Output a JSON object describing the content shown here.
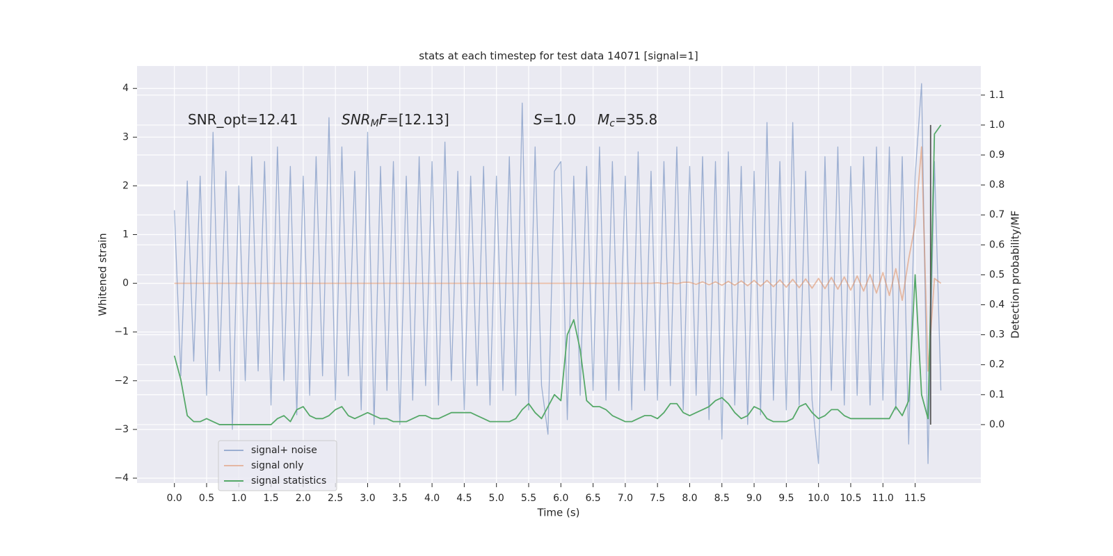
{
  "chart_data": {
    "type": "line",
    "title": "stats at each timestep for test data 14071 [signal=1]",
    "xlabel": "Time (s)",
    "ylabel": "Whitened strain",
    "y2label": "Detection probability/MF",
    "x": [
      0.0,
      0.1,
      0.2,
      0.3,
      0.4,
      0.5,
      0.6,
      0.7,
      0.8,
      0.9,
      1.0,
      1.1,
      1.2,
      1.3,
      1.4,
      1.5,
      1.6,
      1.7,
      1.8,
      1.9,
      2.0,
      2.1,
      2.2,
      2.3,
      2.4,
      2.5,
      2.6,
      2.7,
      2.8,
      2.9,
      3.0,
      3.1,
      3.2,
      3.3,
      3.4,
      3.5,
      3.6,
      3.7,
      3.8,
      3.9,
      4.0,
      4.1,
      4.2,
      4.3,
      4.4,
      4.5,
      4.6,
      4.7,
      4.8,
      4.9,
      5.0,
      5.1,
      5.2,
      5.3,
      5.4,
      5.5,
      5.6,
      5.7,
      5.8,
      5.9,
      6.0,
      6.1,
      6.2,
      6.3,
      6.4,
      6.5,
      6.6,
      6.7,
      6.8,
      6.9,
      7.0,
      7.1,
      7.2,
      7.3,
      7.4,
      7.5,
      7.6,
      7.7,
      7.8,
      7.9,
      8.0,
      8.1,
      8.2,
      8.3,
      8.4,
      8.5,
      8.6,
      8.7,
      8.8,
      8.9,
      9.0,
      9.1,
      9.2,
      9.3,
      9.4,
      9.5,
      9.6,
      9.7,
      9.8,
      9.9,
      10.0,
      10.1,
      10.2,
      10.3,
      10.4,
      10.5,
      10.6,
      10.7,
      10.8,
      10.9,
      11.0,
      11.1,
      11.2,
      11.3,
      11.4,
      11.5,
      11.6,
      11.7,
      11.8,
      11.9
    ],
    "series": [
      {
        "name": "signal+ noise",
        "color": "#4c72b0",
        "opacity": 0.5,
        "axis": "y",
        "values": [
          1.5,
          -1.9,
          2.1,
          -1.6,
          2.2,
          -2.3,
          3.1,
          -1.8,
          2.3,
          -3.0,
          2.0,
          -2.0,
          2.6,
          -1.8,
          2.5,
          -2.5,
          2.8,
          -2.0,
          2.4,
          -2.7,
          2.2,
          -2.3,
          2.6,
          -1.9,
          3.4,
          -2.4,
          2.8,
          -1.9,
          2.3,
          -2.6,
          3.1,
          -2.9,
          2.4,
          -2.2,
          2.5,
          -2.9,
          2.2,
          -2.4,
          2.6,
          -2.1,
          2.5,
          -2.5,
          2.9,
          -2.0,
          2.3,
          -2.6,
          2.2,
          -2.1,
          2.4,
          -2.5,
          2.2,
          -2.2,
          2.6,
          -2.3,
          3.7,
          -2.6,
          2.8,
          -2.1,
          -3.1,
          2.3,
          2.5,
          -2.8,
          2.2,
          -2.3,
          2.4,
          -2.2,
          2.8,
          -2.4,
          2.5,
          -2.2,
          2.2,
          -2.6,
          2.7,
          -2.2,
          2.3,
          -2.4,
          2.5,
          -2.1,
          2.8,
          -2.6,
          2.4,
          -2.3,
          2.6,
          -2.8,
          2.5,
          -3.2,
          2.7,
          -2.5,
          2.4,
          -2.9,
          2.3,
          -2.7,
          3.3,
          -2.4,
          2.5,
          -2.6,
          3.3,
          -2.5,
          2.3,
          -2.4,
          -3.7,
          2.6,
          -2.2,
          2.8,
          -2.5,
          2.4,
          -2.3,
          2.6,
          -2.5,
          2.8,
          -2.4,
          2.8,
          -2.6,
          2.6,
          -3.3,
          2.2,
          4.1,
          -3.7,
          2.5,
          -2.2
        ]
      },
      {
        "name": "signal only",
        "color": "#dd8452",
        "opacity": 0.5,
        "axis": "y",
        "values": [
          0,
          0,
          0,
          0,
          0,
          0,
          0,
          0,
          0,
          0,
          0,
          0,
          0,
          0,
          0,
          0,
          0,
          0,
          0,
          0,
          0,
          0,
          0,
          0,
          0,
          0,
          0,
          0,
          0,
          0,
          0,
          0,
          0,
          0,
          0,
          0,
          0,
          0,
          0,
          0,
          0,
          0,
          0,
          0,
          0,
          0,
          0,
          0,
          0,
          0,
          0,
          0,
          0,
          0,
          0,
          0,
          0,
          0,
          0,
          0,
          0,
          0,
          0,
          0,
          0,
          0,
          0,
          0,
          0,
          0,
          0,
          0,
          0,
          0,
          0,
          0.01,
          -0.01,
          0.01,
          -0.01,
          0.02,
          0.02,
          -0.02,
          0.03,
          -0.03,
          0.03,
          -0.04,
          0.04,
          -0.04,
          0.05,
          -0.05,
          0.06,
          -0.06,
          0.06,
          -0.07,
          0.07,
          -0.08,
          0.08,
          -0.09,
          0.09,
          -0.1,
          0.1,
          -0.11,
          0.12,
          -0.12,
          0.13,
          -0.14,
          0.15,
          -0.16,
          0.18,
          -0.2,
          0.22,
          -0.25,
          0.3,
          -0.35,
          0.5,
          1.2,
          2.8,
          -1.8,
          0.1,
          0.0
        ]
      },
      {
        "name": "signal statistics",
        "color": "#55a868",
        "opacity": 1,
        "axis": "y2",
        "values": [
          0.23,
          0.15,
          0.03,
          0.01,
          0.01,
          0.02,
          0.01,
          0.0,
          0.0,
          0.0,
          0.0,
          0.0,
          0.0,
          0.0,
          0.0,
          0.0,
          0.02,
          0.03,
          0.01,
          0.05,
          0.06,
          0.03,
          0.02,
          0.02,
          0.03,
          0.05,
          0.06,
          0.03,
          0.02,
          0.03,
          0.04,
          0.03,
          0.02,
          0.02,
          0.01,
          0.01,
          0.01,
          0.02,
          0.03,
          0.03,
          0.02,
          0.02,
          0.03,
          0.04,
          0.04,
          0.04,
          0.04,
          0.03,
          0.02,
          0.01,
          0.01,
          0.01,
          0.01,
          0.02,
          0.05,
          0.07,
          0.04,
          0.02,
          0.06,
          0.1,
          0.08,
          0.3,
          0.35,
          0.25,
          0.08,
          0.06,
          0.06,
          0.05,
          0.03,
          0.02,
          0.01,
          0.01,
          0.02,
          0.03,
          0.03,
          0.02,
          0.04,
          0.07,
          0.07,
          0.04,
          0.03,
          0.04,
          0.05,
          0.06,
          0.08,
          0.09,
          0.07,
          0.04,
          0.02,
          0.03,
          0.06,
          0.05,
          0.02,
          0.01,
          0.01,
          0.01,
          0.02,
          0.06,
          0.07,
          0.04,
          0.02,
          0.03,
          0.05,
          0.05,
          0.03,
          0.02,
          0.02,
          0.02,
          0.02,
          0.02,
          0.02,
          0.02,
          0.06,
          0.03,
          0.08,
          0.5,
          0.1,
          0.02,
          0.97,
          1.0
        ]
      }
    ],
    "vlines": [
      {
        "x": 11.74,
        "ymin": 0.0,
        "ymax": 1.0,
        "axis": "y2",
        "color": "#555555"
      }
    ],
    "annotations": [
      {
        "parts": [
          {
            "text": "SNR_opt=12.41",
            "style": "normal"
          }
        ]
      },
      {
        "parts": [
          {
            "text": "SNR",
            "style": "italic"
          },
          {
            "text": "M",
            "style": "italic-sub"
          },
          {
            "text": "F",
            "style": "italic"
          },
          {
            "text": "=[12.13]",
            "style": "normal"
          }
        ]
      },
      {
        "parts": [
          {
            "text": "S",
            "style": "italic"
          },
          {
            "text": "=1.0",
            "style": "normal"
          }
        ]
      },
      {
        "parts": [
          {
            "text": "M",
            "style": "italic"
          },
          {
            "text": "c",
            "style": "italic-sub"
          },
          {
            "text": "=35.8",
            "style": "normal"
          }
        ]
      }
    ],
    "xlim": [
      -0.58,
      12.52
    ],
    "xticks": [
      {
        "value": 0,
        "label": "0.0"
      },
      0.5,
      {
        "value": 1,
        "label": "1.0"
      },
      1.5,
      {
        "value": 2,
        "label": "2.0"
      },
      2.5,
      {
        "value": 3,
        "label": "3.0"
      },
      3.5,
      {
        "value": 4,
        "label": "4.0"
      },
      4.5,
      {
        "value": 5,
        "label": "5.0"
      },
      5.5,
      {
        "value": 6,
        "label": "6.0"
      },
      6.5,
      {
        "value": 7,
        "label": "7.0"
      },
      7.5,
      {
        "value": 8,
        "label": "8.0"
      },
      8.5,
      {
        "value": 9,
        "label": "9.0"
      },
      9.5,
      {
        "value": 10,
        "label": "10.0"
      },
      10.5,
      {
        "value": 11,
        "label": "11.0"
      },
      11.5
    ],
    "ylim": [
      -4.1,
      4.46
    ],
    "yticks": [
      {
        "value": -4,
        "label": "−4"
      },
      {
        "value": -3,
        "label": "−3"
      },
      {
        "value": -2,
        "label": "−2"
      },
      {
        "value": -1,
        "label": "−1"
      },
      0,
      1,
      2,
      3,
      4
    ],
    "y2lim": [
      -0.195,
      1.197
    ],
    "y2ticks": [
      {
        "value": 0,
        "label": "0.0"
      },
      0.1,
      0.2,
      0.3,
      0.4,
      0.5,
      0.6,
      0.7,
      0.8,
      0.9,
      {
        "value": 1,
        "label": "1.0"
      },
      1.1
    ],
    "grid": true,
    "legend": "lower left",
    "background": "#eaeaf2"
  }
}
